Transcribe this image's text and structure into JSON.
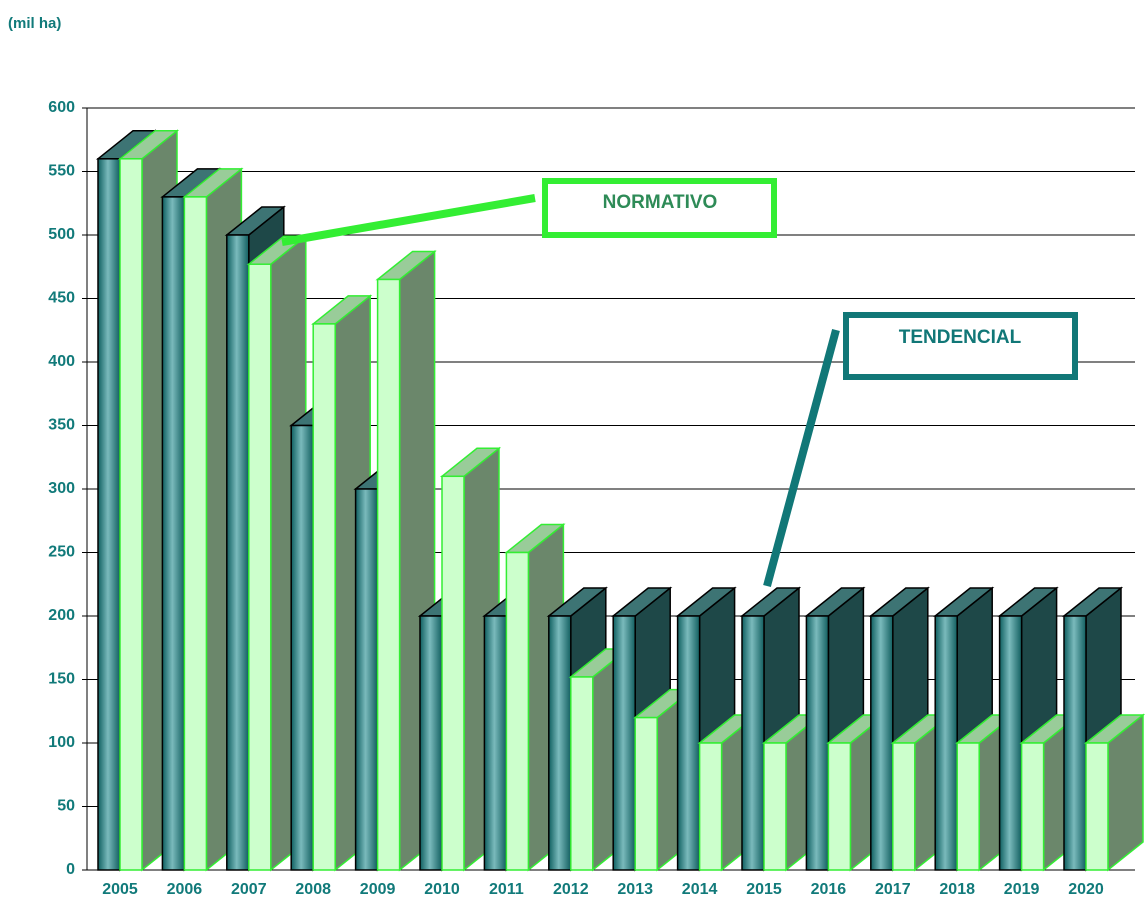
{
  "chart_data": {
    "type": "bar3d",
    "y_label": "(mil ha)",
    "categories": [
      "2005",
      "2006",
      "2007",
      "2008",
      "2009",
      "2010",
      "2011",
      "2012",
      "2013",
      "2014",
      "2015",
      "2016",
      "2017",
      "2018",
      "2019",
      "2020"
    ],
    "series": [
      {
        "name": "TENDENCIAL",
        "color": "#1a7f80",
        "values": [
          560,
          530,
          500,
          350,
          300,
          200,
          200,
          200,
          200,
          200,
          200,
          200,
          200,
          200,
          200,
          200
        ]
      },
      {
        "name": "NORMATIVO",
        "color": "#ccffcc",
        "values": [
          560,
          530,
          477,
          430,
          465,
          310,
          250,
          152,
          120,
          100,
          100,
          100,
          100,
          100,
          100,
          100
        ]
      }
    ],
    "ylim": [
      0,
      600
    ],
    "yticks": [
      0,
      50,
      100,
      150,
      200,
      250,
      300,
      350,
      400,
      450,
      500,
      550,
      600
    ],
    "grid": true
  }
}
